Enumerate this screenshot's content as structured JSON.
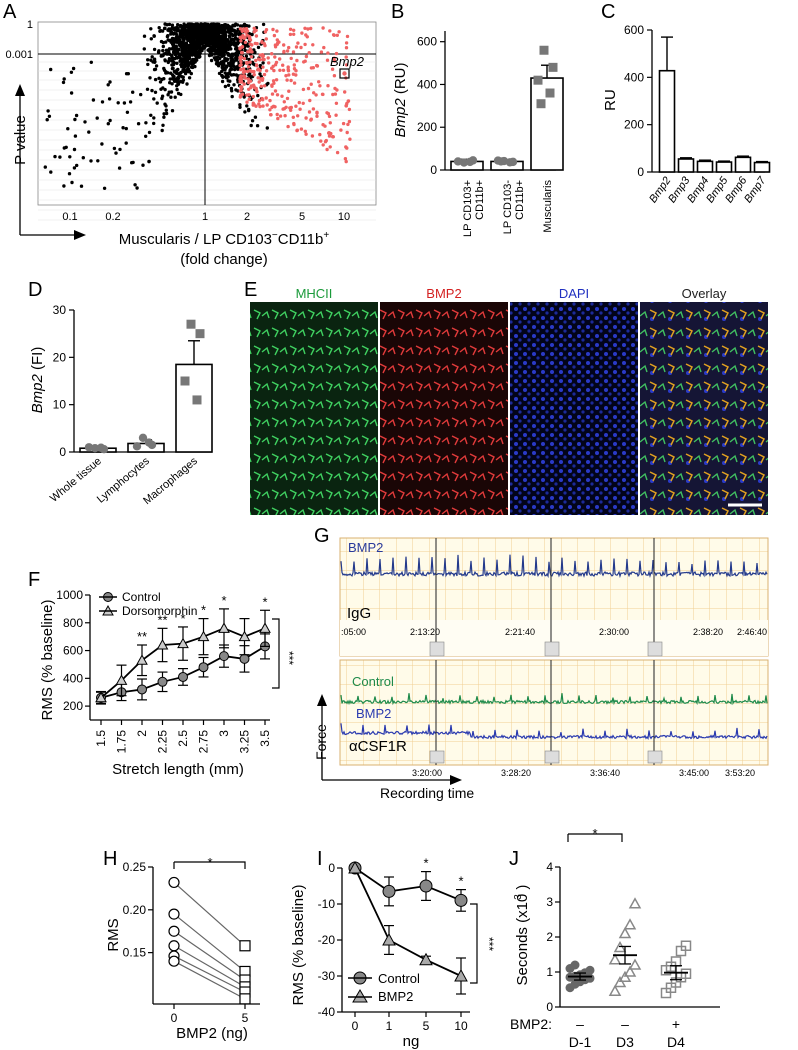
{
  "panels": {
    "A": {
      "letter": "A",
      "ylabel": "P value",
      "xlabel_line1_a": "Muscularis / LP CD103",
      "xlabel_line1_sup1": "−",
      "xlabel_line1_b": "CD11b",
      "xlabel_line1_sup2": "+",
      "xlabel_line2": "(fold change)",
      "y_ticks": [
        "1",
        "0.001"
      ],
      "x_ticks": [
        "0.1",
        "0.2",
        "1",
        "2",
        "5",
        "10"
      ],
      "annotation": "Bmp2"
    },
    "B": {
      "letter": "B",
      "ylabel": "Bmp2 (RU)",
      "y_ticks": [
        "0",
        "200",
        "400",
        "600"
      ],
      "categories": [
        "LP CD103+ CD11b+",
        "LP CD103- CD11b+",
        "Muscularis"
      ],
      "cat_line1": [
        "LP CD103+",
        "LP CD103-",
        "Muscularis"
      ],
      "cat_line2": [
        "CD11b+",
        "CD11b+",
        ""
      ]
    },
    "C": {
      "letter": "C",
      "ylabel": "RU",
      "y_ticks": [
        "0",
        "200",
        "400",
        "600"
      ],
      "categories": [
        "Bmp2",
        "Bmp3",
        "Bmp4",
        "Bmp5",
        "Bmp6",
        "Bmp7"
      ]
    },
    "D": {
      "letter": "D",
      "ylabel": "Bmp2 (FI)",
      "y_ticks": [
        "0",
        "10",
        "20",
        "30"
      ],
      "categories": [
        "Whole tissue",
        "Lymphocytes",
        "Macrophages"
      ]
    },
    "E": {
      "letter": "E",
      "channels": [
        "MHCII",
        "BMP2",
        "DAPI",
        "Overlay"
      ],
      "channel_colors": [
        "#1a9a3a",
        "#d42020",
        "#2030c0",
        "#222222"
      ]
    },
    "F": {
      "letter": "F",
      "ylabel": "RMS (% baseline)",
      "xlabel": "Stretch length (mm)",
      "legend": [
        "Control",
        "Dorsomorphin"
      ],
      "y_ticks": [
        "200",
        "400",
        "600",
        "800",
        "1000"
      ],
      "x_ticks": [
        "1.5",
        "1.75",
        "2",
        "2.25",
        "2.5",
        "2.75",
        "3",
        "3.25",
        "3.5"
      ],
      "sig_above": [
        "**",
        "**",
        "*",
        "*",
        "*",
        "*"
      ],
      "sig_bracket": "***"
    },
    "G": {
      "letter": "G",
      "top_trace_label": "BMP2",
      "top_treatment": "IgG",
      "top_times": [
        ":05:00",
        "2:13:20",
        "2:21:40",
        "2:30:00",
        "2:38:20",
        "2:46:40"
      ],
      "bottom_trace_labels": [
        "Control",
        "BMP2"
      ],
      "bottom_treatment": "αCSF1R",
      "bottom_times": [
        "3:20:00",
        "3:28:20",
        "3:36:40",
        "3:45:00",
        "3:53:20"
      ],
      "yaxis": "Force",
      "xaxis": "Recording time",
      "colors": {
        "blue": "#243a8c",
        "green": "#1e8a4a",
        "grid": "#f0c98a"
      }
    },
    "H": {
      "letter": "H",
      "ylabel": "RMS",
      "xlabel": "BMP2 (ng)",
      "y_ticks": [
        "0.15",
        "0.20",
        "0.25"
      ],
      "x_ticks": [
        "0",
        "5"
      ],
      "sig": "*"
    },
    "I": {
      "letter": "I",
      "ylabel": "RMS (% baseline)",
      "xlabel": "ng",
      "legend": [
        "Control",
        "BMP2"
      ],
      "y_ticks": [
        "0",
        "-10",
        "-20",
        "-30",
        "-40"
      ],
      "x_ticks": [
        "0",
        "1",
        "5",
        "10"
      ],
      "sig_above": [
        "*",
        "*"
      ],
      "sig_bracket": "***"
    },
    "J": {
      "letter": "J",
      "ylabel": "Seconds (x10 )",
      "ylabel_sup": "3",
      "y_ticks": [
        "0",
        "1",
        "2",
        "3",
        "4"
      ],
      "row_label": "BMP2:",
      "treat": [
        "–",
        "–",
        "+"
      ],
      "days": [
        "D-1",
        "D3",
        "D4"
      ],
      "sig": "*"
    }
  },
  "chart_data": [
    {
      "type": "scatter",
      "panel": "A",
      "xlabel": "Muscularis / LP CD103−CD11b+ (fold change)",
      "ylabel": "P value",
      "xscale": "log",
      "yscale": "log",
      "annotation": {
        "label": "Bmp2",
        "x": 10,
        "y": 0.0001
      }
    },
    {
      "type": "bar",
      "panel": "B",
      "ylabel": "Bmp2 (RU)",
      "categories": [
        "LP CD103+ CD11b+",
        "LP CD103- CD11b+",
        "Muscularis"
      ],
      "values": [
        40,
        40,
        430
      ],
      "errors": [
        10,
        8,
        60
      ],
      "points": [
        [
          35,
          45,
          40,
          38
        ],
        [
          42,
          38,
          44,
          36,
          40
        ],
        [
          560,
          480,
          420,
          360,
          310
        ]
      ],
      "ylim": [
        0,
        650
      ]
    },
    {
      "type": "bar",
      "panel": "C",
      "ylabel": "RU",
      "categories": [
        "Bmp2",
        "Bmp3",
        "Bmp4",
        "Bmp5",
        "Bmp6",
        "Bmp7"
      ],
      "values": [
        428,
        55,
        45,
        42,
        62,
        40
      ],
      "errors": [
        142,
        5,
        5,
        4,
        5,
        4
      ],
      "ylim": [
        0,
        600
      ]
    },
    {
      "type": "bar",
      "panel": "D",
      "ylabel": "Bmp2 (FI)",
      "categories": [
        "Whole tissue",
        "Lymphocytes",
        "Macrophages"
      ],
      "values": [
        0.8,
        1.8,
        18.5
      ],
      "errors": [
        0.3,
        0.8,
        5
      ],
      "points": [
        [
          0.8,
          0.6,
          1.0,
          0.9
        ],
        [
          3.0,
          1.5,
          1.2,
          2.0
        ],
        [
          27,
          25,
          15,
          11
        ]
      ],
      "ylim": [
        0,
        30
      ]
    },
    {
      "type": "line",
      "panel": "F",
      "xlabel": "Stretch length (mm)",
      "ylabel": "RMS (% baseline)",
      "x": [
        1.5,
        1.75,
        2,
        2.25,
        2.5,
        2.75,
        3,
        3.25,
        3.5
      ],
      "series": [
        {
          "name": "Control",
          "values": [
            260,
            300,
            320,
            375,
            410,
            480,
            560,
            540,
            630
          ],
          "errors": [
            45,
            60,
            75,
            70,
            60,
            70,
            80,
            95,
            90
          ]
        },
        {
          "name": "Dorsomorphin",
          "values": [
            260,
            385,
            530,
            640,
            650,
            700,
            760,
            700,
            760
          ],
          "errors": [
            40,
            110,
            110,
            120,
            120,
            130,
            140,
            130,
            130
          ]
        }
      ],
      "ylim": [
        100,
        1000
      ]
    },
    {
      "type": "line",
      "panel": "H",
      "xlabel": "BMP2 (ng)",
      "ylabel": "RMS",
      "x": [
        0,
        5
      ],
      "series": [
        {
          "values": [
            0.232,
            0.158
          ]
        },
        {
          "values": [
            0.195,
            0.128
          ]
        },
        {
          "values": [
            0.175,
            0.118
          ]
        },
        {
          "values": [
            0.158,
            0.11
          ]
        },
        {
          "values": [
            0.146,
            0.104
          ]
        },
        {
          "values": [
            0.14,
            0.096
          ]
        }
      ],
      "ylim": [
        0.09,
        0.25
      ]
    },
    {
      "type": "line",
      "panel": "I",
      "xlabel": "ng",
      "ylabel": "RMS (% baseline)",
      "x": [
        0,
        1,
        5,
        10
      ],
      "series": [
        {
          "name": "Control",
          "values": [
            0,
            -6.5,
            -5,
            -9
          ],
          "errors": [
            0,
            4,
            4,
            3
          ]
        },
        {
          "name": "BMP2",
          "values": [
            0,
            -20,
            -25.5,
            -30
          ],
          "errors": [
            0,
            4,
            1,
            5
          ]
        }
      ],
      "ylim": [
        -40,
        0
      ]
    },
    {
      "type": "scatter",
      "panel": "J",
      "ylabel": "Seconds (x10 3)",
      "categories": [
        "D-1",
        "D3",
        "D4"
      ],
      "means": [
        0.87,
        1.48,
        0.98
      ],
      "sems": [
        0.1,
        0.25,
        0.2
      ],
      "points": [
        [
          0.55,
          0.65,
          0.72,
          0.78,
          0.82,
          0.85,
          0.88,
          0.92,
          0.98,
          1.05,
          1.1,
          1.2
        ],
        [
          0.45,
          0.7,
          0.85,
          1.0,
          1.2,
          1.35,
          1.7,
          2.1,
          2.35,
          2.95
        ],
        [
          0.4,
          0.55,
          0.7,
          0.85,
          0.95,
          1.05,
          1.15,
          1.3,
          1.6,
          1.75
        ]
      ],
      "ylim": [
        0,
        4
      ]
    }
  ]
}
